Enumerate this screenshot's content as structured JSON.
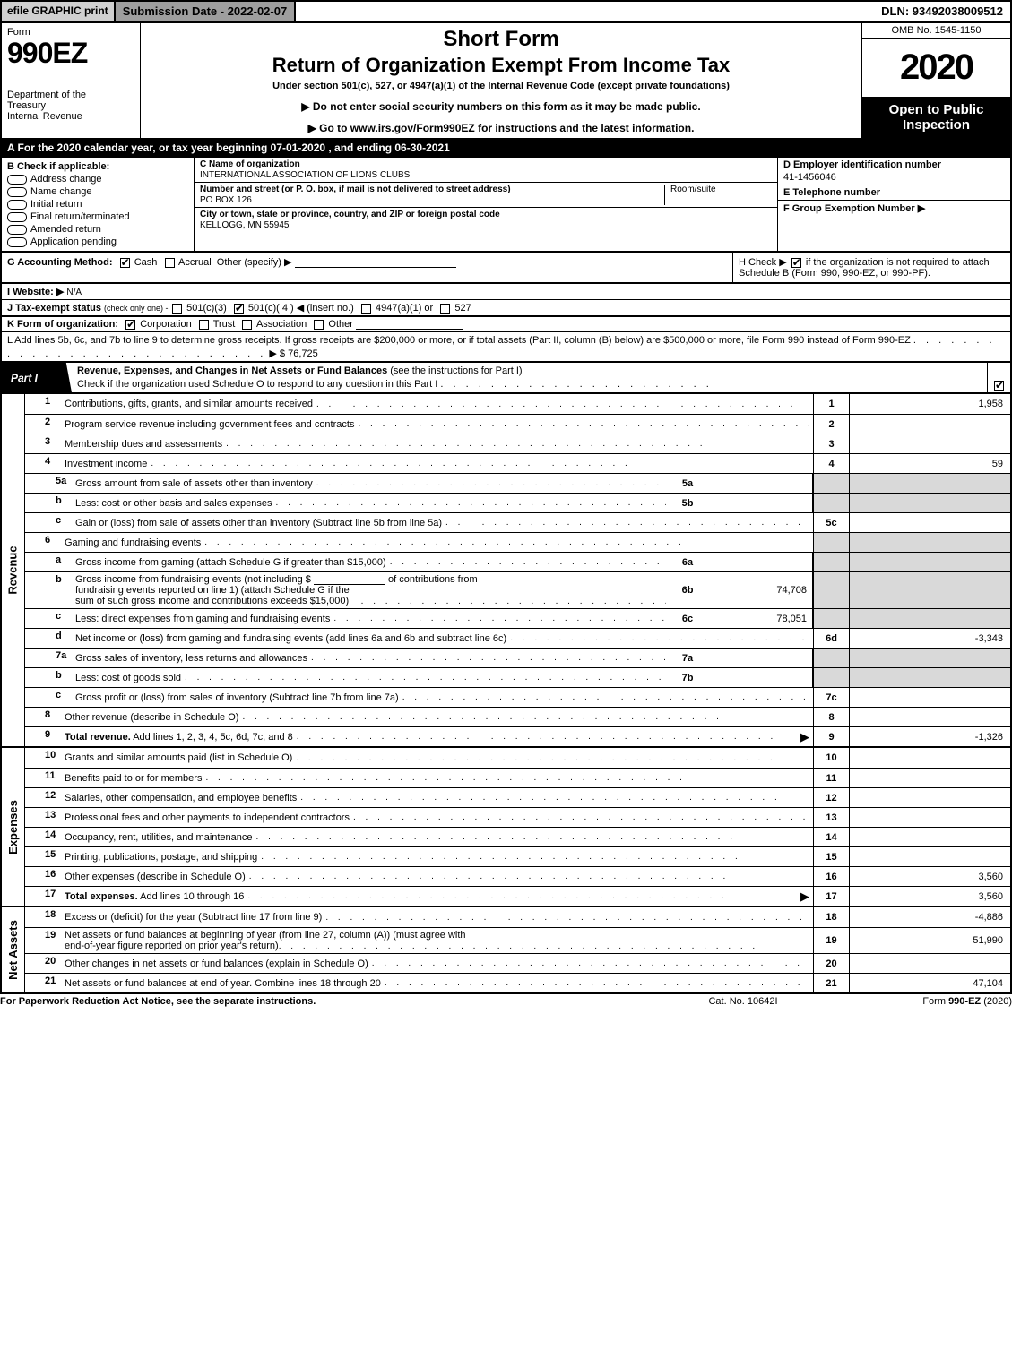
{
  "topbar": {
    "efile": "efile GRAPHIC print",
    "subdate_label": "Submission Date - 2022-02-07",
    "dln": "DLN: 93492038009512"
  },
  "header": {
    "form_label": "Form",
    "form_num": "990EZ",
    "dept": "Department of the",
    "treasury": "Treasury",
    "irs": "Internal Revenue",
    "short_form": "Short Form",
    "ret_title": "Return of Organization Exempt From Income Tax",
    "under_sec": "Under section 501(c), 527, or 4947(a)(1) of the Internal Revenue Code (except private foundations)",
    "arrow1": "▶ Do not enter social security numbers on this form as it may be made public.",
    "arrow2_pre": "▶ Go to ",
    "arrow2_link": "www.irs.gov/Form990EZ",
    "arrow2_post": " for instructions and the latest information.",
    "omb": "OMB No. 1545-1150",
    "year": "2020",
    "open": "Open to Public Inspection"
  },
  "row_a": "A  For the 2020 calendar year, or tax year beginning 07-01-2020 , and ending 06-30-2021",
  "sec_b": {
    "title": "B  Check if applicable:",
    "items": [
      "Address change",
      "Name change",
      "Initial return",
      "Final return/terminated",
      "Amended return",
      "Application pending"
    ]
  },
  "sec_c": {
    "name_lbl": "C Name of organization",
    "name_val": "INTERNATIONAL ASSOCIATION OF LIONS CLUBS",
    "addr_lbl": "Number and street (or P. O. box, if mail is not delivered to street address)",
    "addr_val": "PO BOX 126",
    "room_lbl": "Room/suite",
    "city_lbl": "City or town, state or province, country, and ZIP or foreign postal code",
    "city_val": "KELLOGG, MN  55945"
  },
  "sec_right": {
    "d_lbl": "D Employer identification number",
    "d_val": "41-1456046",
    "e_lbl": "E Telephone number",
    "f_lbl": "F Group Exemption Number   ▶"
  },
  "row_g": {
    "g": "G Accounting Method:",
    "cash": "Cash",
    "accrual": "Accrual",
    "other": "Other (specify) ▶",
    "h_pre": "H  Check ▶ ",
    "h_post": " if the organization is not required to attach Schedule B (Form 990, 990-EZ, or 990-PF)."
  },
  "row_i": {
    "label": "I Website: ▶",
    "val": "N/A"
  },
  "row_j": {
    "pre": "J Tax-exempt status ",
    "sub": "(check only one) - ",
    "o1": "501(c)(3)",
    "o2": "501(c)( 4 ) ◀ (insert no.)",
    "o3": "4947(a)(1) or",
    "o4": "527"
  },
  "row_k": {
    "pre": "K Form of organization:",
    "o1": "Corporation",
    "o2": "Trust",
    "o3": "Association",
    "o4": "Other"
  },
  "row_l": {
    "text": "L Add lines 5b, 6c, and 7b to line 9 to determine gross receipts. If gross receipts are $200,000 or more, or if total assets (Part II, column (B) below) are $500,000 or more, file Form 990 instead of Form 990-EZ",
    "amt_pre": "▶ $ ",
    "amt": "76,725"
  },
  "part1": {
    "pill": "Part I",
    "title": "Revenue, Expenses, and Changes in Net Assets or Fund Balances",
    "sub": " (see the instructions for Part I)",
    "line2": "Check if the organization used Schedule O to respond to any question in this Part I"
  },
  "side_labels": {
    "revenue": "Revenue",
    "expenses": "Expenses",
    "netassets": "Net Assets"
  },
  "revenue_rows": [
    {
      "n": "1",
      "d": "Contributions, gifts, grants, and similar amounts received",
      "box": "1",
      "amt": "1,958"
    },
    {
      "n": "2",
      "d": "Program service revenue including government fees and contracts",
      "box": "2",
      "amt": ""
    },
    {
      "n": "3",
      "d": "Membership dues and assessments",
      "box": "3",
      "amt": ""
    },
    {
      "n": "4",
      "d": "Investment income",
      "box": "4",
      "amt": "59"
    },
    {
      "n": "5a",
      "sub": true,
      "d": "Gross amount from sale of assets other than inventory",
      "mid": "5a",
      "midval": "",
      "shade": true
    },
    {
      "n": "b",
      "sub": true,
      "d": "Less: cost or other basis and sales expenses",
      "mid": "5b",
      "midval": "",
      "shade": true
    },
    {
      "n": "c",
      "sub": true,
      "d": "Gain or (loss) from sale of assets other than inventory (Subtract line 5b from line 5a)",
      "box": "5c",
      "amt": ""
    },
    {
      "n": "6",
      "d": "Gaming and fundraising events",
      "shade": true,
      "noboxnum": true
    },
    {
      "n": "a",
      "sub": true,
      "d": "Gross income from gaming (attach Schedule G if greater than $15,000)",
      "mid": "6a",
      "midval": "",
      "shade": true
    },
    {
      "n": "b",
      "sub": true,
      "multiline": true,
      "d1": "Gross income from fundraising events (not including $",
      "d1b": "of contributions from",
      "d2": "fundraising events reported on line 1) (attach Schedule G if the",
      "d3": "sum of such gross income and contributions exceeds $15,000)",
      "mid": "6b",
      "midval": "74,708",
      "shade": true
    },
    {
      "n": "c",
      "sub": true,
      "d": "Less: direct expenses from gaming and fundraising events",
      "mid": "6c",
      "midval": "78,051",
      "shade": true
    },
    {
      "n": "d",
      "sub": true,
      "d": "Net income or (loss) from gaming and fundraising events (add lines 6a and 6b and subtract line 6c)",
      "box": "6d",
      "amt": "-3,343"
    },
    {
      "n": "7a",
      "sub": true,
      "d": "Gross sales of inventory, less returns and allowances",
      "mid": "7a",
      "midval": "",
      "shade": true
    },
    {
      "n": "b",
      "sub": true,
      "d": "Less: cost of goods sold",
      "mid": "7b",
      "midval": "",
      "shade": true
    },
    {
      "n": "c",
      "sub": true,
      "d": "Gross profit or (loss) from sales of inventory (Subtract line 7b from line 7a)",
      "box": "7c",
      "amt": ""
    },
    {
      "n": "8",
      "d": "Other revenue (describe in Schedule O)",
      "box": "8",
      "amt": ""
    },
    {
      "n": "9",
      "bold": true,
      "d": "Total revenue. Add lines 1, 2, 3, 4, 5c, 6d, 7c, and 8",
      "arrow": true,
      "box": "9",
      "amt": "-1,326"
    }
  ],
  "expense_rows": [
    {
      "n": "10",
      "d": "Grants and similar amounts paid (list in Schedule O)",
      "box": "10",
      "amt": ""
    },
    {
      "n": "11",
      "d": "Benefits paid to or for members",
      "box": "11",
      "amt": ""
    },
    {
      "n": "12",
      "d": "Salaries, other compensation, and employee benefits",
      "box": "12",
      "amt": ""
    },
    {
      "n": "13",
      "d": "Professional fees and other payments to independent contractors",
      "box": "13",
      "amt": ""
    },
    {
      "n": "14",
      "d": "Occupancy, rent, utilities, and maintenance",
      "box": "14",
      "amt": ""
    },
    {
      "n": "15",
      "d": "Printing, publications, postage, and shipping",
      "box": "15",
      "amt": ""
    },
    {
      "n": "16",
      "d": "Other expenses (describe in Schedule O)",
      "box": "16",
      "amt": "3,560"
    },
    {
      "n": "17",
      "bold": true,
      "d": "Total expenses. Add lines 10 through 16",
      "arrow": true,
      "box": "17",
      "amt": "3,560"
    }
  ],
  "netasset_rows": [
    {
      "n": "18",
      "d": "Excess or (deficit) for the year (Subtract line 17 from line 9)",
      "box": "18",
      "amt": "-4,886"
    },
    {
      "n": "19",
      "multiline": true,
      "d1": "Net assets or fund balances at beginning of year (from line 27, column (A)) (must agree with",
      "d2": "end-of-year figure reported on prior year's return)",
      "box": "19",
      "amt": "51,990"
    },
    {
      "n": "20",
      "d": "Other changes in net assets or fund balances (explain in Schedule O)",
      "box": "20",
      "amt": ""
    },
    {
      "n": "21",
      "d": "Net assets or fund balances at end of year. Combine lines 18 through 20",
      "box": "21",
      "amt": "47,104"
    }
  ],
  "footer": {
    "left": "For Paperwork Reduction Act Notice, see the separate instructions.",
    "center": "Cat. No. 10642I",
    "right_pre": "Form ",
    "right_bold": "990-EZ",
    "right_post": " (2020)"
  }
}
